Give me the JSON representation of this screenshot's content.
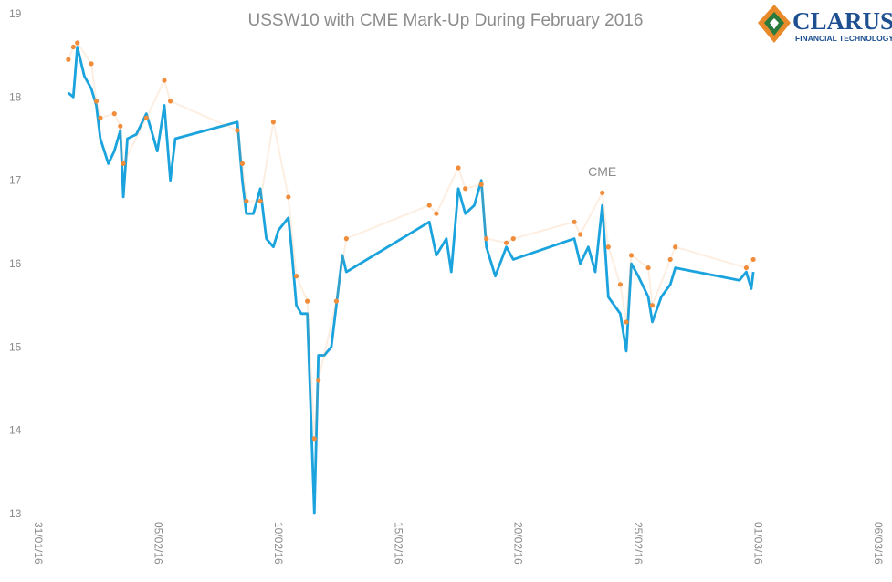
{
  "chart_data": {
    "type": "line",
    "title": "USSW10 with CME Mark-Up During February 2016",
    "ylim": [
      13,
      19
    ],
    "yticks": [
      13,
      14,
      15,
      16,
      17,
      18,
      19
    ],
    "xlim": [
      "2016-01-31T00:00",
      "2016-03-06T00:00"
    ],
    "xticks": [
      {
        "value": "2016-01-31T00:00",
        "label": "31/01/16"
      },
      {
        "value": "2016-02-05T00:00",
        "label": "05/02/16"
      },
      {
        "value": "2016-02-10T00:00",
        "label": "10/02/16"
      },
      {
        "value": "2016-02-15T00:00",
        "label": "15/02/16"
      },
      {
        "value": "2016-02-20T00:00",
        "label": "20/02/16"
      },
      {
        "value": "2016-02-25T00:00",
        "label": "25/02/16"
      },
      {
        "value": "2016-03-01T00:00",
        "label": "01/03/16"
      },
      {
        "value": "2016-03-06T00:00",
        "label": "06/03/16"
      }
    ],
    "grid": false,
    "series": [
      {
        "color": "#1ba3dd",
        "style": "line",
        "x": [
          "2016-02-01T06:00",
          "2016-02-01T11:00",
          "2016-02-01T15:00",
          "2016-02-01T18:00",
          "2016-02-01T22:00",
          "2016-02-02T05:00",
          "2016-02-02T10:00",
          "2016-02-02T14:00",
          "2016-02-02T22:00",
          "2016-02-03T04:00",
          "2016-02-03T10:00",
          "2016-02-03T13:00",
          "2016-02-03T17:00",
          "2016-02-04T02:00",
          "2016-02-04T12:00",
          "2016-02-04T17:00",
          "2016-02-04T23:00",
          "2016-02-05T06:00",
          "2016-02-05T12:00",
          "2016-02-05T17:00",
          "2016-02-08T07:00",
          "2016-02-08T12:00",
          "2016-02-08T16:00",
          "2016-02-08T23:00",
          "2016-02-09T06:00",
          "2016-02-09T12:00",
          "2016-02-09T19:00",
          "2016-02-10T00:00",
          "2016-02-10T10:00",
          "2016-02-10T13:00",
          "2016-02-10T18:00",
          "2016-02-10T23:00",
          "2016-02-11T05:00",
          "2016-02-11T12:00",
          "2016-02-11T16:00",
          "2016-02-11T22:00",
          "2016-02-12T05:00",
          "2016-02-12T10:00",
          "2016-02-12T16:00",
          "2016-02-12T20:00",
          "2016-02-16T07:00",
          "2016-02-16T14:00",
          "2016-02-17T00:00",
          "2016-02-17T05:00",
          "2016-02-17T12:00",
          "2016-02-17T19:00",
          "2016-02-18T04:00",
          "2016-02-18T11:00",
          "2016-02-18T16:00",
          "2016-02-19T01:00",
          "2016-02-19T12:00",
          "2016-02-19T19:00",
          "2016-02-22T08:00",
          "2016-02-22T14:00",
          "2016-02-22T22:00",
          "2016-02-23T05:00",
          "2016-02-23T12:00",
          "2016-02-23T18:00",
          "2016-02-24T06:00",
          "2016-02-24T12:00",
          "2016-02-24T17:00",
          "2016-02-25T00:00",
          "2016-02-25T10:00",
          "2016-02-25T14:00",
          "2016-02-25T23:00",
          "2016-02-26T08:00",
          "2016-02-26T13:00",
          "2016-02-29T05:00",
          "2016-02-29T12:00",
          "2016-02-29T17:00",
          "2016-02-29T19:00"
        ],
        "values": [
          18.05,
          18.0,
          18.6,
          18.45,
          18.25,
          18.1,
          17.9,
          17.5,
          17.2,
          17.35,
          17.6,
          16.8,
          17.5,
          17.55,
          17.8,
          17.6,
          17.35,
          17.9,
          17.0,
          17.5,
          17.7,
          17.0,
          16.6,
          16.6,
          16.9,
          16.3,
          16.2,
          16.4,
          16.55,
          16.2,
          15.5,
          15.4,
          15.4,
          13.0,
          14.9,
          14.9,
          15.0,
          15.5,
          16.1,
          15.9,
          16.5,
          16.1,
          16.3,
          15.9,
          16.9,
          16.6,
          16.7,
          17.0,
          16.2,
          15.85,
          16.2,
          16.05,
          16.3,
          16.0,
          16.2,
          15.9,
          16.7,
          15.6,
          15.4,
          14.95,
          16.0,
          15.85,
          15.6,
          15.3,
          15.6,
          15.75,
          15.95,
          15.8,
          15.9,
          15.7,
          15.9
        ]
      },
      {
        "color": "#f08c3a",
        "style": "dots",
        "x": [
          "2016-02-01T06:00",
          "2016-02-01T11:00",
          "2016-02-01T15:00",
          "2016-02-02T05:00",
          "2016-02-02T10:00",
          "2016-02-02T14:00",
          "2016-02-03T04:00",
          "2016-02-03T10:00",
          "2016-02-03T13:00",
          "2016-02-04T12:00",
          "2016-02-05T06:00",
          "2016-02-05T12:00",
          "2016-02-08T07:00",
          "2016-02-08T12:00",
          "2016-02-08T16:00",
          "2016-02-09T06:00",
          "2016-02-09T19:00",
          "2016-02-10T10:00",
          "2016-02-10T18:00",
          "2016-02-11T05:00",
          "2016-02-11T12:00",
          "2016-02-11T16:00",
          "2016-02-12T10:00",
          "2016-02-12T20:00",
          "2016-02-16T07:00",
          "2016-02-16T14:00",
          "2016-02-17T12:00",
          "2016-02-17T19:00",
          "2016-02-18T11:00",
          "2016-02-18T16:00",
          "2016-02-19T12:00",
          "2016-02-19T19:00",
          "2016-02-22T08:00",
          "2016-02-22T14:00",
          "2016-02-23T12:00",
          "2016-02-23T18:00",
          "2016-02-24T06:00",
          "2016-02-24T12:00",
          "2016-02-24T17:00",
          "2016-02-25T10:00",
          "2016-02-25T14:00",
          "2016-02-26T08:00",
          "2016-02-26T13:00",
          "2016-02-29T12:00",
          "2016-02-29T19:00"
        ],
        "values": [
          18.45,
          18.6,
          18.65,
          18.4,
          17.95,
          17.75,
          17.8,
          17.65,
          17.2,
          17.75,
          18.2,
          17.95,
          17.6,
          17.2,
          16.75,
          16.75,
          17.7,
          16.8,
          15.85,
          15.55,
          13.9,
          14.6,
          15.55,
          16.3,
          16.7,
          16.6,
          17.15,
          16.9,
          16.95,
          16.3,
          16.25,
          16.3,
          16.5,
          16.35,
          16.85,
          16.2,
          15.75,
          15.3,
          16.1,
          15.95,
          15.5,
          16.05,
          16.2,
          15.95,
          16.05
        ]
      }
    ],
    "annotation": {
      "text": "CME",
      "x": "2016-02-23T12:00",
      "y": 17.05
    }
  },
  "logo": {
    "name": "CLARUS",
    "subtitle": "FINANCIAL TECHNOLOGY"
  }
}
